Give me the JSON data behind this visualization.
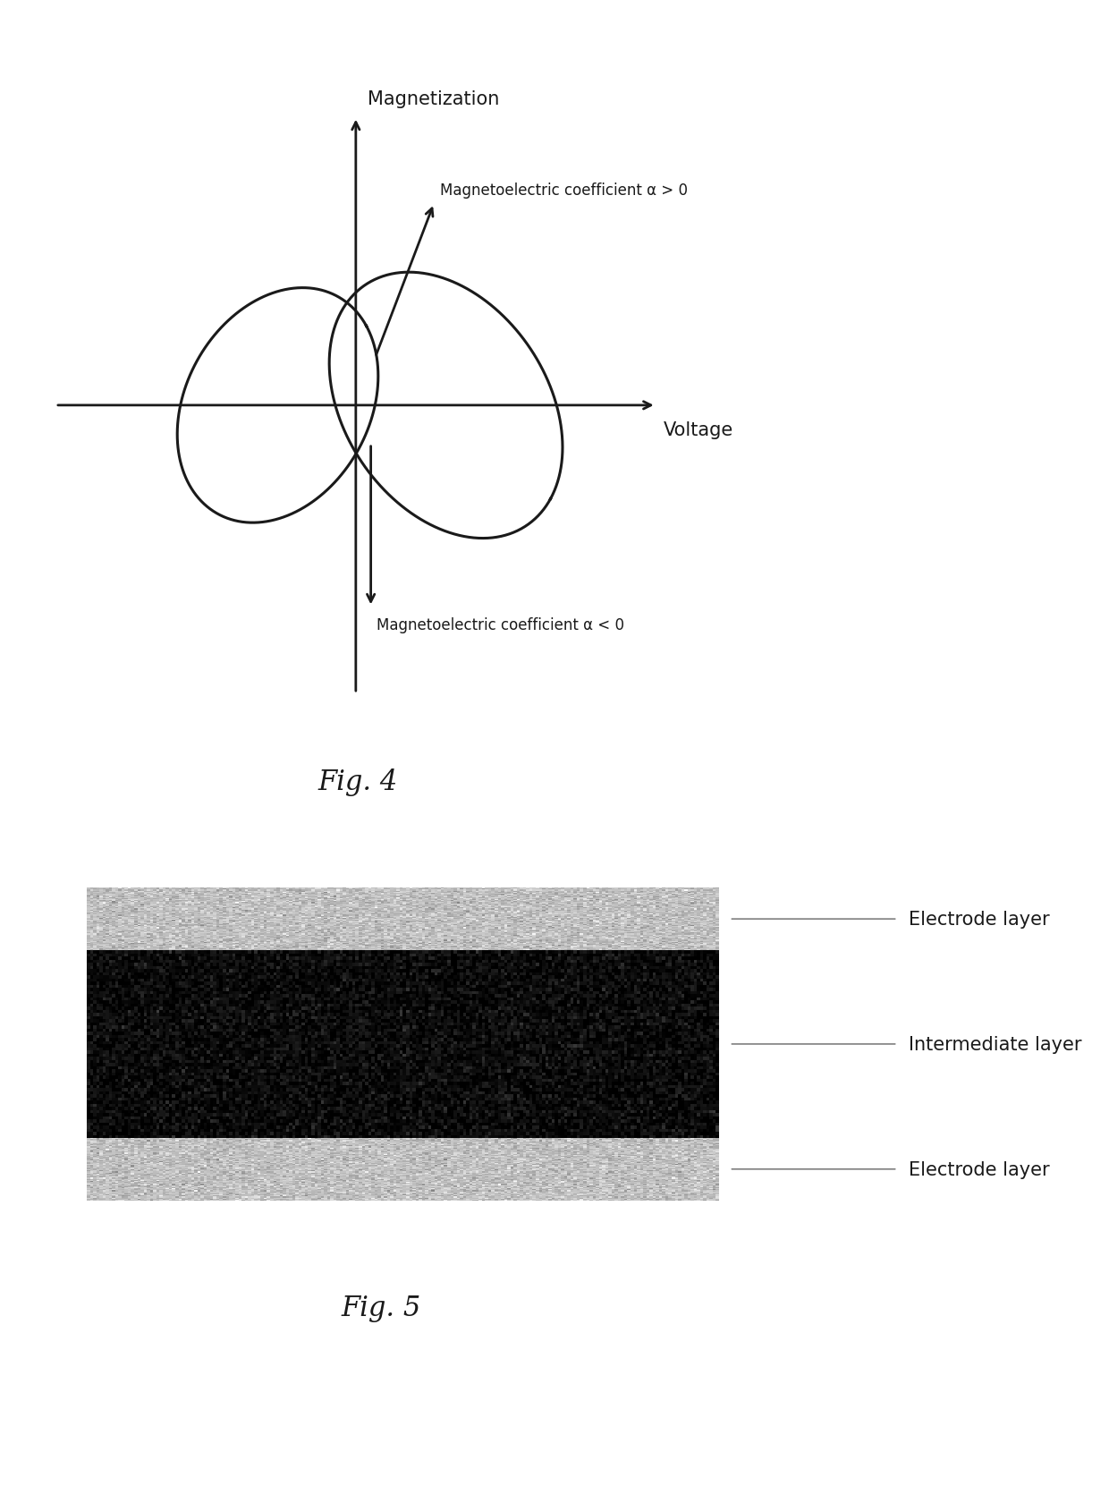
{
  "fig4_title": "Fig. 4",
  "fig5_title": "Fig. 5",
  "mag_label": "Magnetization",
  "volt_label": "Voltage",
  "alpha_pos_label": "Magnetoelectric coefficient α > 0",
  "alpha_neg_label": "Magnetoelectric coefficient α < 0",
  "electrode_label": "Electrode layer",
  "intermediate_label": "Intermediate layer",
  "electrode_color": "#c0c0c0",
  "intermediate_color": "#0a0a0a",
  "bg_color": "#ffffff",
  "curve_color": "#1a1a1a",
  "axis_color": "#1a1a1a",
  "text_color": "#1a1a1a",
  "figsize": [
    12.4,
    16.81
  ]
}
